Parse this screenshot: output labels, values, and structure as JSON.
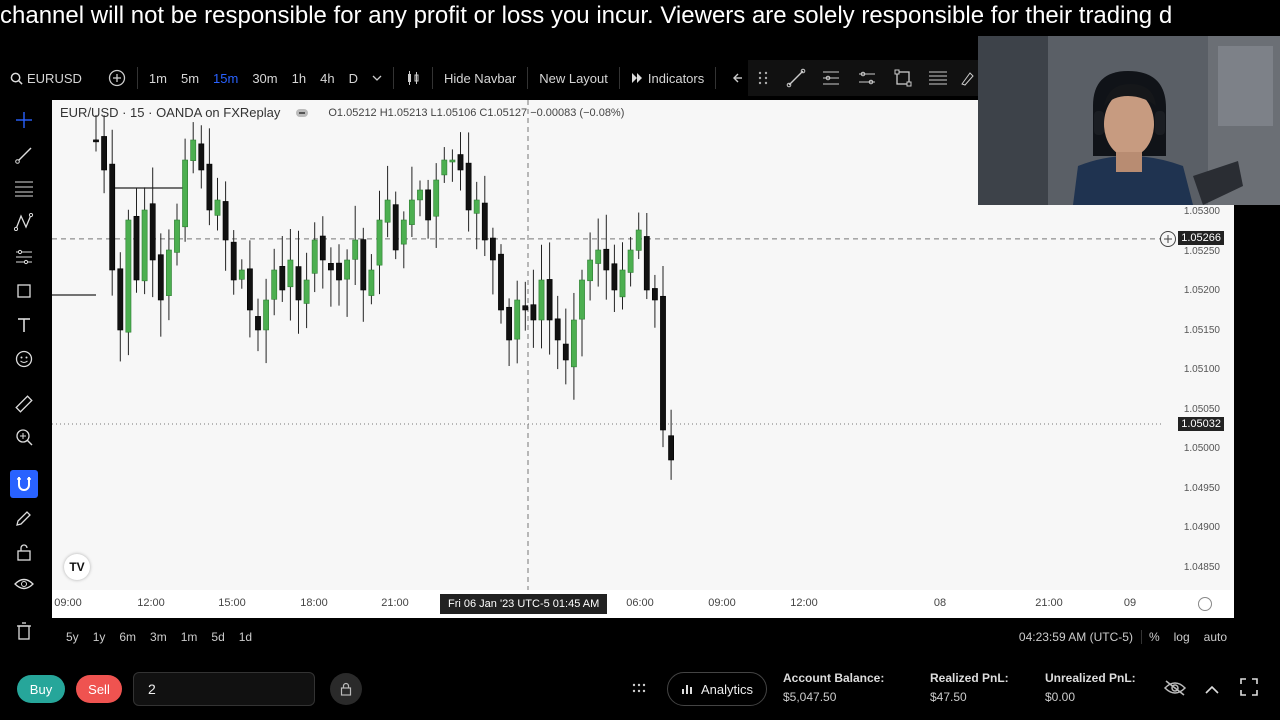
{
  "banner": {
    "text": "channel will not be responsible for any profit or loss you incur. Viewers are solely responsible for their trading d"
  },
  "toolbar": {
    "symbol": "EURUSD",
    "intervals": [
      "1m",
      "5m",
      "15m",
      "30m",
      "1h",
      "4h",
      "D"
    ],
    "active_interval": "15m",
    "hide_navbar": "Hide Navbar",
    "new_layout": "New Layout",
    "indicators": "Indicators"
  },
  "chart": {
    "legend_title": "EUR/USD · 15 · OANDA on FXReplay",
    "ohlc": "O1.05212  H1.05213  L1.05106  C1.05127  −0.00083 (−0.08%)",
    "crosshair_price": "1.05266",
    "last_price": "1.05032",
    "y_ticks": [
      "1.05300",
      "1.05250",
      "1.05200",
      "1.05150",
      "1.05100",
      "1.05050",
      "1.05000",
      "1.04950",
      "1.04900",
      "1.04850"
    ],
    "x_ticks": [
      "09:00",
      "12:00",
      "15:00",
      "18:00",
      "21:00",
      "06:00",
      "09:00",
      "12:00",
      "08",
      "21:00",
      "09"
    ],
    "cursor_time": "Fri 06 Jan '23 UTC-5   01:45 AM",
    "colors": {
      "up": "#26a69a",
      "up_fill": "#4caf50",
      "down": "#111111",
      "background": "#f7f7f7"
    }
  },
  "range_bar": {
    "ranges": [
      "5y",
      "1y",
      "6m",
      "3m",
      "1m",
      "5d",
      "1d"
    ],
    "clock": "04:23:59 AM (UTC-5)",
    "percent": "%",
    "log": "log",
    "auto": "auto"
  },
  "bottom": {
    "buy": "Buy",
    "sell": "Sell",
    "quantity": "2",
    "analytics": "Analytics",
    "account_balance_label": "Account Balance:",
    "account_balance_value": "$5,047.50",
    "realized_label": "Realized PnL:",
    "realized_value": "$47.50",
    "unrealized_label": "Unrealized PnL:",
    "unrealized_value": "$0.00",
    "buy_color": "#26a69a",
    "sell_color": "#ef5350"
  }
}
